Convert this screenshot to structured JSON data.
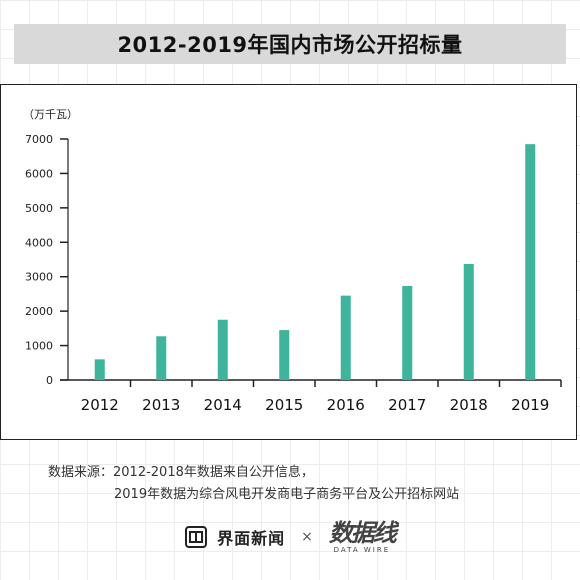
{
  "title": "2012-2019年国内市场公开招标量",
  "chart_data": {
    "type": "bar",
    "unit_label": "（万千瓦）",
    "categories": [
      "2012",
      "2013",
      "2014",
      "2015",
      "2016",
      "2017",
      "2018",
      "2019"
    ],
    "values": [
      600,
      1270,
      1750,
      1450,
      2450,
      2730,
      3370,
      6850
    ],
    "ylim": [
      0,
      7000
    ],
    "yticks": [
      0,
      1000,
      2000,
      3000,
      4000,
      5000,
      6000,
      7000
    ],
    "bar_color": "#3db49b",
    "grid": false,
    "legend": "none"
  },
  "source": {
    "line1": "数据来源：2012-2018年数据来自公开信息，",
    "line2": "2019年数据为综合风电开发商电子商务平台及公开招标网站"
  },
  "footer": {
    "brand1": "界面新闻",
    "separator": "×",
    "brand2": "数据线",
    "brand2_sub": "DATA WIRE"
  }
}
